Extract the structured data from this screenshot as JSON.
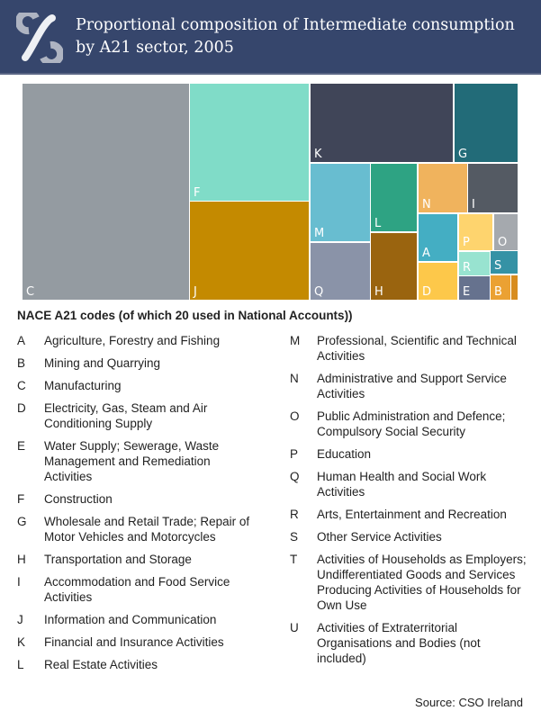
{
  "header": {
    "title_line1": "Proportional composition of Intermediate consumption",
    "title_line2": "by A21 sector, 2005",
    "logo": "cso-logo",
    "background": "#36466c"
  },
  "chart_data": {
    "type": "treemap",
    "title": "Proportional composition of Intermediate consumption by A21 sector, 2005",
    "unit": "approximate share (%)",
    "items": [
      {
        "code": "C",
        "value": 34.4,
        "color": "#949ba1"
      },
      {
        "code": "F",
        "value": 13.3,
        "color": "#80dcc8"
      },
      {
        "code": "J",
        "value": 11.2,
        "color": "#c48a00"
      },
      {
        "code": "K",
        "value": 10.7,
        "color": "#404558"
      },
      {
        "code": "G",
        "value": 4.7,
        "color": "#226b78"
      },
      {
        "code": "M",
        "value": 4.4,
        "color": "#68bdd0"
      },
      {
        "code": "Q",
        "value": 3.2,
        "color": "#8a93a8"
      },
      {
        "code": "L",
        "value": 3.0,
        "color": "#2ea383"
      },
      {
        "code": "H",
        "value": 2.9,
        "color": "#9a640f"
      },
      {
        "code": "N",
        "value": 2.3,
        "color": "#f0b35d"
      },
      {
        "code": "I",
        "value": 2.3,
        "color": "#545a63"
      },
      {
        "code": "A",
        "value": 1.7,
        "color": "#44aec3"
      },
      {
        "code": "D",
        "value": 1.4,
        "color": "#fdc84a"
      },
      {
        "code": "P",
        "value": 1.1,
        "color": "#fed46e"
      },
      {
        "code": "O",
        "value": 0.8,
        "color": "#a5a9ae"
      },
      {
        "code": "R",
        "value": 0.7,
        "color": "#98e3d0"
      },
      {
        "code": "E",
        "value": 0.7,
        "color": "#66728e"
      },
      {
        "code": "S",
        "value": 0.6,
        "color": "#3592a5"
      },
      {
        "code": "B",
        "value": 0.5,
        "color": "#eba133"
      },
      {
        "code": "",
        "value": 0.1,
        "color": "#d88c1e"
      }
    ]
  },
  "legend": {
    "title": "NACE A21 codes (of which 20 used in National Accounts))",
    "col1": [
      {
        "code": "A",
        "label": "Agriculture, Forestry and Fishing"
      },
      {
        "code": "B",
        "label": "Mining and Quarrying"
      },
      {
        "code": "C",
        "label": "Manufacturing"
      },
      {
        "code": "D",
        "label": "Electricity, Gas, Steam and Air Conditioning Supply"
      },
      {
        "code": "E",
        "label": "Water Supply; Sewerage, Waste Management and Remediation Activities"
      },
      {
        "code": "F",
        "label": "Construction"
      },
      {
        "code": "G",
        "label": "Wholesale and Retail Trade; Repair of Motor Vehicles and Motorcycles"
      },
      {
        "code": "H",
        "label": "Transportation and Storage"
      },
      {
        "code": "I",
        "label": "Accommodation and Food Service Activities"
      },
      {
        "code": "J",
        "label": "Information and Communication"
      },
      {
        "code": "K",
        "label": "Financial and Insurance Activities"
      },
      {
        "code": "L",
        "label": "Real Estate Activities"
      }
    ],
    "col2": [
      {
        "code": "M",
        "label": "Professional, Scientific and Technical Activities"
      },
      {
        "code": "N",
        "label": "Administrative and Support Service Activities"
      },
      {
        "code": "O",
        "label": "Public Administration and Defence; Compulsory Social Security"
      },
      {
        "code": "P",
        "label": "Education"
      },
      {
        "code": "Q",
        "label": "Human Health and Social Work Activities"
      },
      {
        "code": "R",
        "label": "Arts, Entertainment and Recreation"
      },
      {
        "code": "S",
        "label": "Other Service Activities"
      },
      {
        "code": "T",
        "label": "Activities of Households as Employers; Undifferentiated Goods and Services Producing Activities of Households for Own Use"
      },
      {
        "code": "U",
        "label": "Activities of Extraterritorial Organisations and Bodies (not included)"
      }
    ]
  },
  "source": "Source:  CSO Ireland"
}
